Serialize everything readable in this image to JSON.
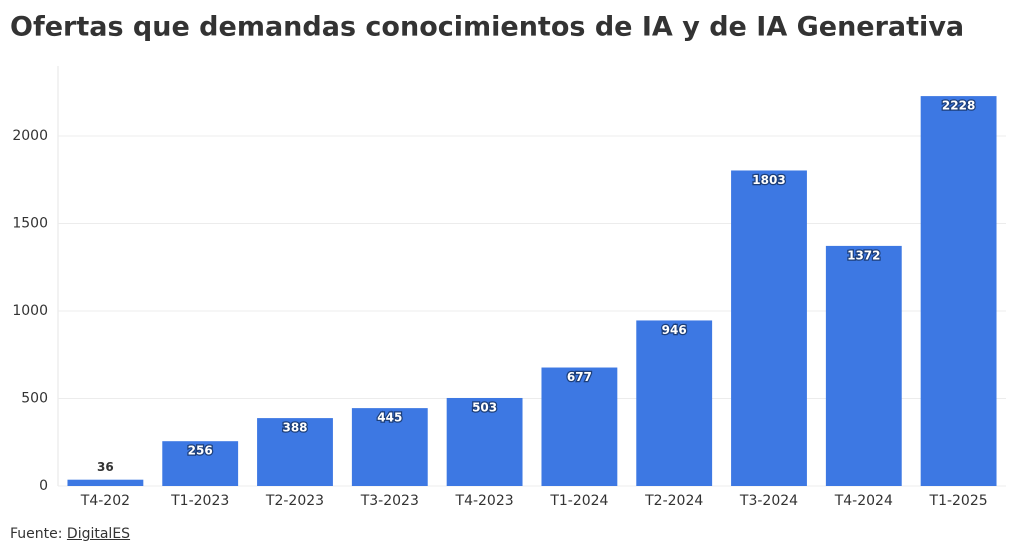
{
  "chart_data": {
    "type": "bar",
    "title": "Ofertas que demandas conocimientos de IA y de IA Generativa",
    "categories": [
      "T4-202",
      "T1-2023",
      "T2-2023",
      "T3-2023",
      "T4-2023",
      "T1-2024",
      "T2-2024",
      "T3-2024",
      "T4-2024",
      "T1-2025"
    ],
    "values": [
      36,
      256,
      388,
      445,
      503,
      677,
      946,
      1803,
      1372,
      2228
    ],
    "color": "#3d78e3",
    "ylim": [
      0,
      2400
    ],
    "yticks": [
      0,
      500,
      1000,
      1500,
      2000
    ],
    "grid": true
  },
  "footer": {
    "source_label": "Fuente:",
    "source_name": "DigitalES"
  }
}
